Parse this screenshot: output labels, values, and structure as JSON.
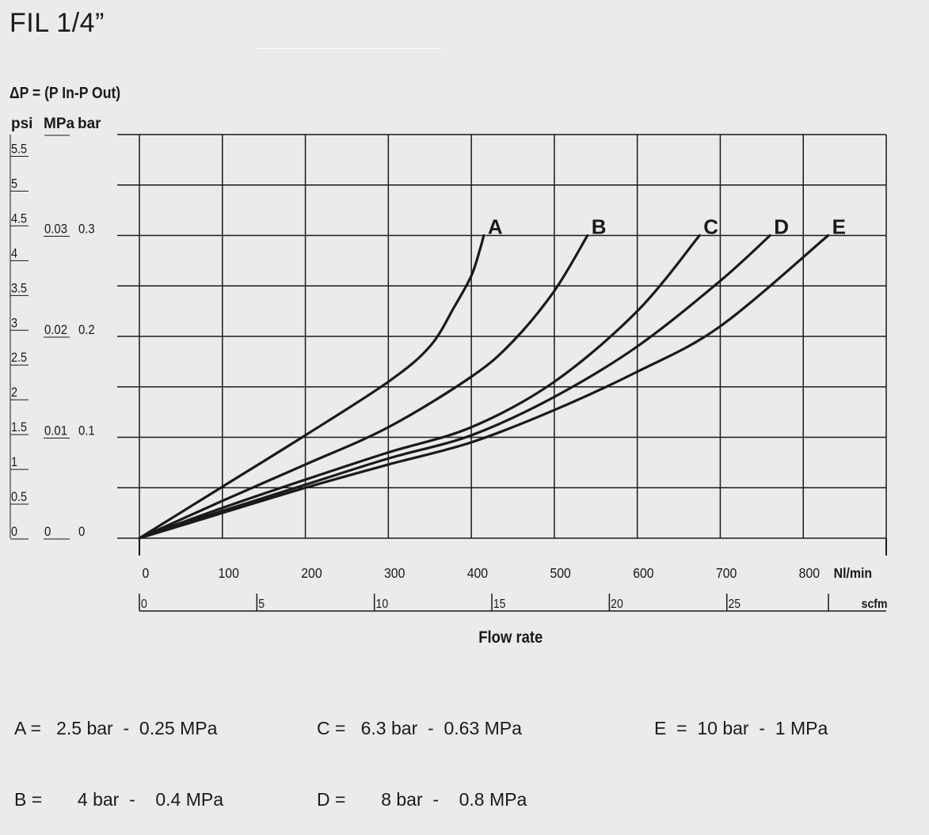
{
  "page": {
    "title": "FIL 1/4”"
  },
  "chart_data": {
    "type": "line",
    "ylabel": "ΔP = (P In-P Out)",
    "xlabel": "Flow rate",
    "y_units": {
      "psi": "psi",
      "mpa": "MPa",
      "bar": "bar"
    },
    "psi_ticks": [
      "5.5",
      "5",
      "4.5",
      "4",
      "3.5",
      "3",
      "2.5",
      "2",
      "1.5",
      "1",
      "0.5",
      "0"
    ],
    "mpa_ticks": [
      {
        "bar": 0.3,
        "label": "0.03"
      },
      {
        "bar": 0.2,
        "label": "0.02"
      },
      {
        "bar": 0.1,
        "label": "0.01"
      },
      {
        "bar": 0,
        "label": "0"
      }
    ],
    "bar_ticks": [
      {
        "bar": 0.3,
        "label": "0.3"
      },
      {
        "bar": 0.2,
        "label": "0.2"
      },
      {
        "bar": 0.1,
        "label": "0.1"
      },
      {
        "bar": 0,
        "label": "0"
      }
    ],
    "x_unit": "Nl/min",
    "x_ticks": [
      "0",
      "100",
      "200",
      "300",
      "400",
      "500",
      "600",
      "700",
      "800"
    ],
    "scfm_unit": "scfm",
    "scfm_ticks": [
      "0",
      "5",
      "10",
      "15",
      "20",
      "25"
    ],
    "xlim": [
      0,
      900
    ],
    "ylim_bar": [
      0,
      0.4
    ],
    "grid": true,
    "series": [
      {
        "name": "A",
        "x": [
          0,
          100,
          200,
          300,
          350,
          380,
          400,
          410,
          415
        ],
        "y": [
          0,
          0.051,
          0.102,
          0.155,
          0.19,
          0.23,
          0.26,
          0.285,
          0.3
        ]
      },
      {
        "name": "B",
        "x": [
          0,
          100,
          200,
          300,
          400,
          450,
          500,
          540
        ],
        "y": [
          0,
          0.037,
          0.073,
          0.11,
          0.16,
          0.195,
          0.245,
          0.3
        ]
      },
      {
        "name": "C",
        "x": [
          0,
          100,
          200,
          300,
          400,
          500,
          600,
          675
        ],
        "y": [
          0,
          0.03,
          0.058,
          0.085,
          0.11,
          0.155,
          0.225,
          0.3
        ]
      },
      {
        "name": "D",
        "x": [
          0,
          100,
          200,
          300,
          400,
          500,
          600,
          700,
          760
        ],
        "y": [
          0,
          0.027,
          0.053,
          0.079,
          0.102,
          0.14,
          0.19,
          0.255,
          0.3
        ]
      },
      {
        "name": "E",
        "x": [
          0,
          100,
          200,
          300,
          400,
          500,
          600,
          700,
          830
        ],
        "y": [
          0,
          0.025,
          0.05,
          0.073,
          0.095,
          0.127,
          0.165,
          0.21,
          0.3
        ]
      }
    ]
  },
  "legend": [
    {
      "letter": "A",
      "pressure": "2.5 bar",
      "mpa": "0.25 MPa"
    },
    {
      "letter": "B",
      "pressure": "4 bar",
      "mpa": "0.4 MPa"
    },
    {
      "letter": "C",
      "pressure": "6.3 bar",
      "mpa": "0.63 MPa"
    },
    {
      "letter": "D",
      "pressure": "8 bar",
      "mpa": "0.8 MPa"
    },
    {
      "letter": "E",
      "pressure": "10 bar",
      "mpa": "1 MPa"
    }
  ]
}
